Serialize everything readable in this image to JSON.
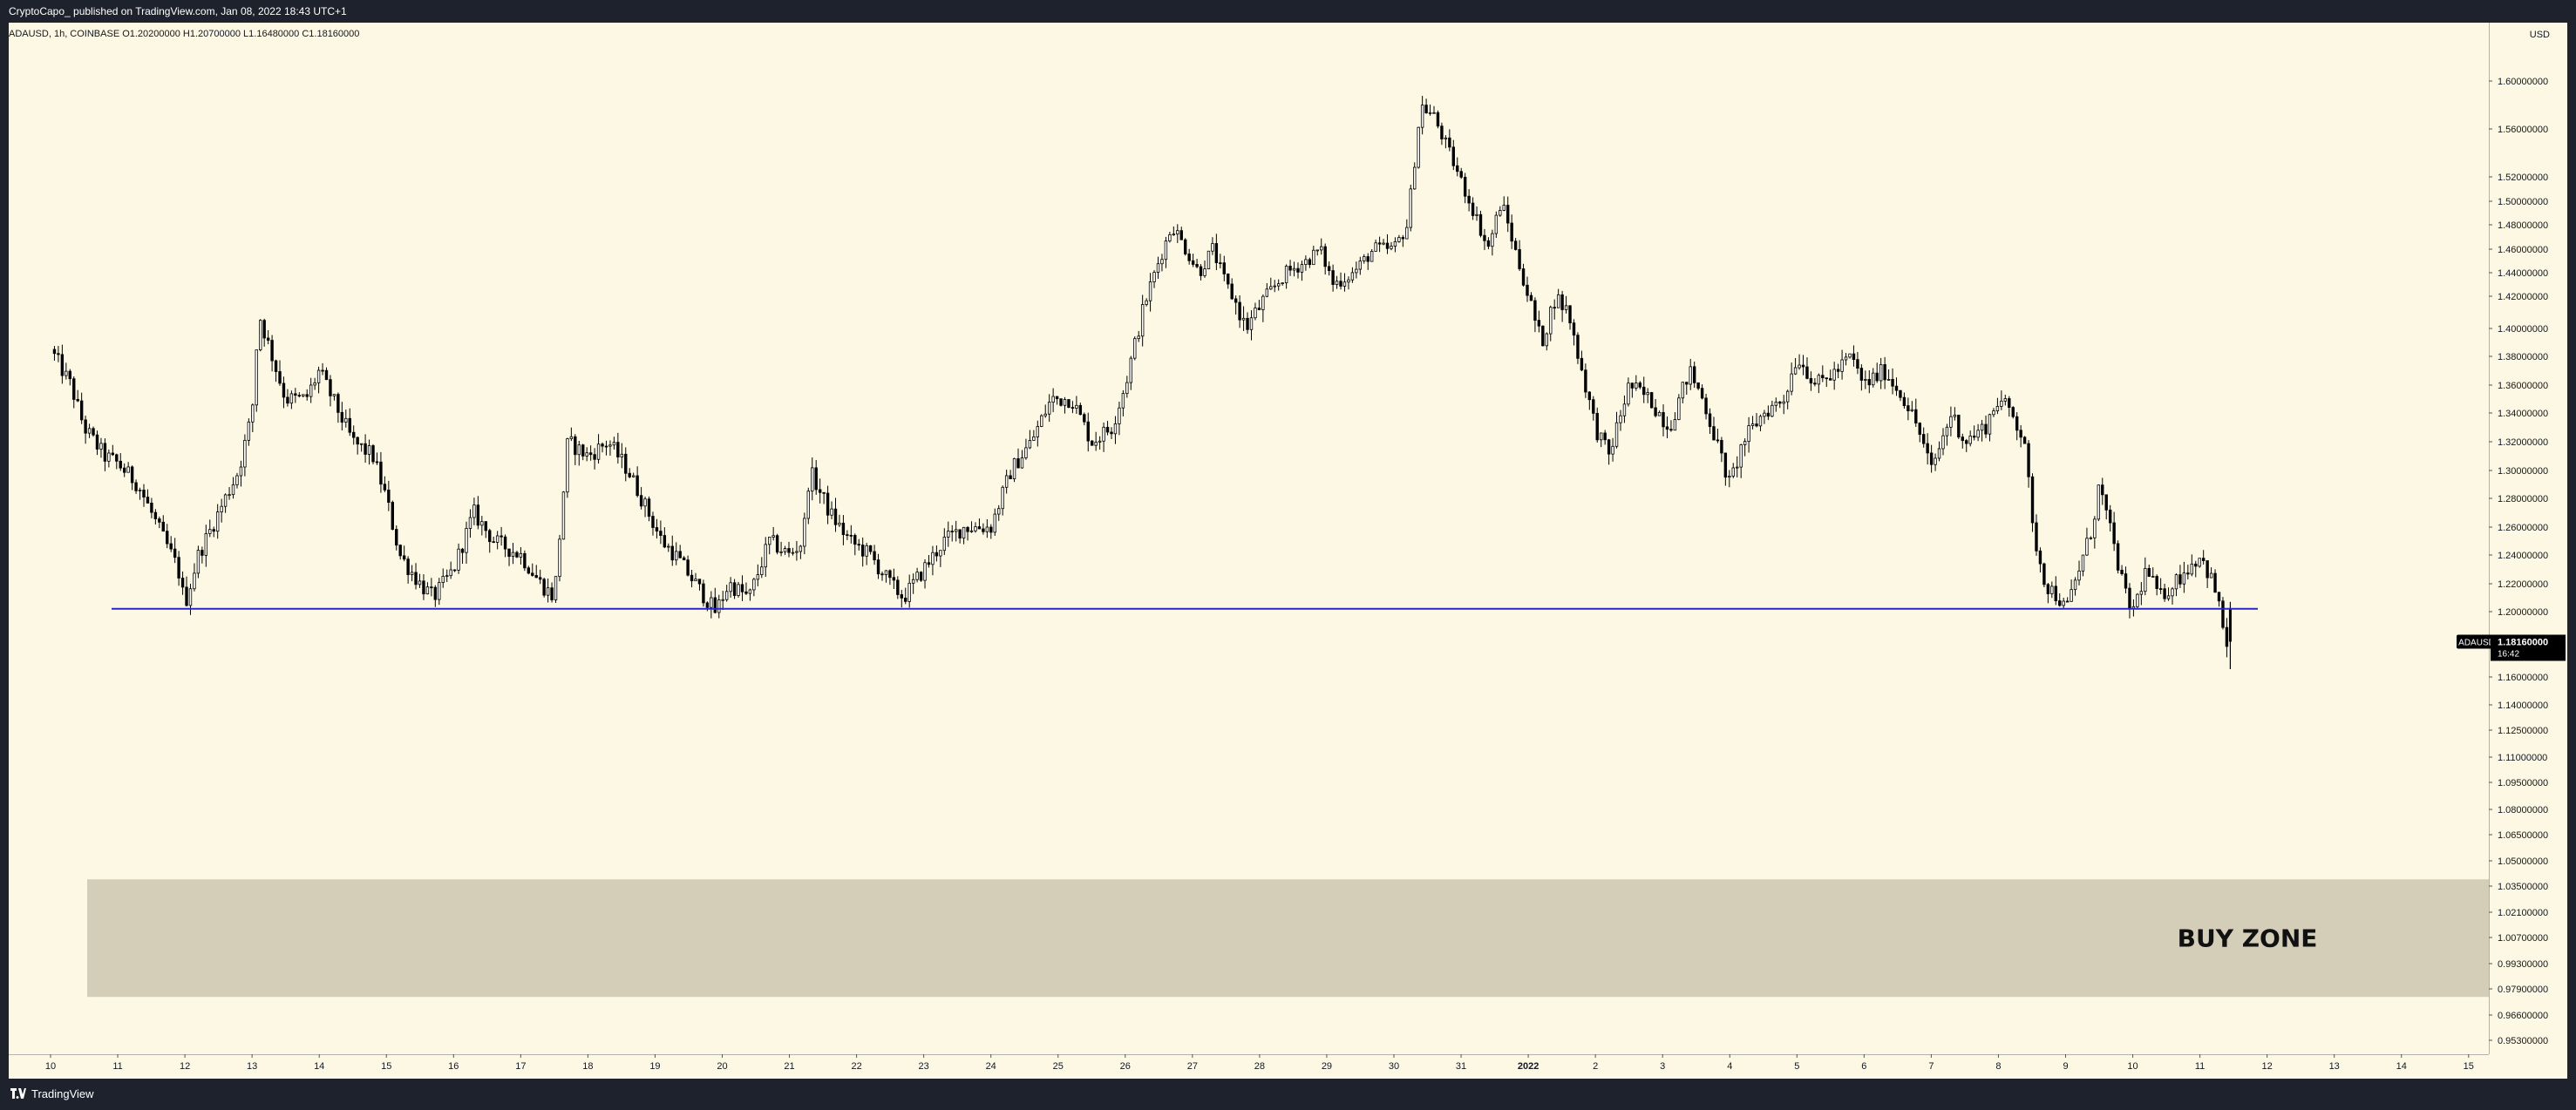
{
  "header": {
    "published_text": "CryptoCapo_ published on TradingView.com, Jan 08, 2022 18:43 UTC+1"
  },
  "footer": {
    "brand_label": "TradingView"
  },
  "chart_data": {
    "type": "candlestick",
    "symbol_line": "ADAUSD, 1h, COINBASE O1.20200000 H1.20700000 L1.16480000 C1.18160000",
    "currency_label": "USD",
    "price_tag": {
      "symbol": "ADAUSD",
      "price": "1.18160000",
      "countdown": "16:42",
      "value": 1.1816
    },
    "support_line": {
      "price": 1.202
    },
    "zone": {
      "label": "BUY ZONE",
      "from": 0.975,
      "to": 1.039
    },
    "x_ticks": [
      "10",
      "11",
      "12",
      "13",
      "14",
      "15",
      "16",
      "17",
      "18",
      "19",
      "20",
      "21",
      "22",
      "23",
      "24",
      "25",
      "26",
      "27",
      "28",
      "29",
      "30",
      "31",
      "2022",
      "2",
      "3",
      "4",
      "5",
      "6",
      "7",
      "8",
      "9",
      "10",
      "11",
      "12",
      "13",
      "14",
      "15"
    ],
    "y_ticks": [
      "1.60000000",
      "1.56000000",
      "1.52000000",
      "1.50000000",
      "1.48000000",
      "1.46000000",
      "1.44000000",
      "1.42000000",
      "1.40000000",
      "1.38000000",
      "1.36000000",
      "1.34000000",
      "1.32000000",
      "1.30000000",
      "1.28000000",
      "1.26000000",
      "1.24000000",
      "1.22000000",
      "1.20000000",
      "1.16000000",
      "1.14000000",
      "1.12500000",
      "1.11000000",
      "1.09500000",
      "1.08000000",
      "1.06500000",
      "1.05000000",
      "1.03500000",
      "1.02100000",
      "1.00700000",
      "0.99300000",
      "0.97900000",
      "0.96600000",
      "0.95300000"
    ],
    "price_path": [
      [
        0.0,
        1.385
      ],
      [
        0.3,
        1.36
      ],
      [
        0.5,
        1.33
      ],
      [
        0.8,
        1.31
      ],
      [
        1.0,
        1.305
      ],
      [
        1.3,
        1.29
      ],
      [
        1.5,
        1.27
      ],
      [
        1.7,
        1.25
      ],
      [
        1.9,
        1.23
      ],
      [
        2.0,
        1.205
      ],
      [
        2.2,
        1.24
      ],
      [
        2.5,
        1.27
      ],
      [
        2.8,
        1.3
      ],
      [
        3.0,
        1.34
      ],
      [
        3.1,
        1.41
      ],
      [
        3.3,
        1.38
      ],
      [
        3.5,
        1.35
      ],
      [
        3.8,
        1.35
      ],
      [
        4.0,
        1.37
      ],
      [
        4.2,
        1.35
      ],
      [
        4.5,
        1.32
      ],
      [
        4.8,
        1.31
      ],
      [
        5.0,
        1.28
      ],
      [
        5.2,
        1.24
      ],
      [
        5.5,
        1.22
      ],
      [
        5.7,
        1.21
      ],
      [
        6.0,
        1.23
      ],
      [
        6.3,
        1.27
      ],
      [
        6.6,
        1.25
      ],
      [
        7.0,
        1.24
      ],
      [
        7.3,
        1.22
      ],
      [
        7.5,
        1.21
      ],
      [
        7.7,
        1.32
      ],
      [
        8.0,
        1.31
      ],
      [
        8.3,
        1.32
      ],
      [
        8.6,
        1.3
      ],
      [
        8.9,
        1.27
      ],
      [
        9.1,
        1.25
      ],
      [
        9.3,
        1.24
      ],
      [
        9.6,
        1.22
      ],
      [
        9.9,
        1.2
      ],
      [
        10.1,
        1.22
      ],
      [
        10.4,
        1.21
      ],
      [
        10.7,
        1.25
      ],
      [
        11.0,
        1.24
      ],
      [
        11.2,
        1.25
      ],
      [
        11.3,
        1.3
      ],
      [
        11.6,
        1.27
      ],
      [
        11.9,
        1.25
      ],
      [
        12.2,
        1.24
      ],
      [
        12.5,
        1.22
      ],
      [
        12.7,
        1.21
      ],
      [
        13.0,
        1.23
      ],
      [
        13.3,
        1.25
      ],
      [
        13.6,
        1.26
      ],
      [
        14.0,
        1.26
      ],
      [
        14.3,
        1.3
      ],
      [
        14.6,
        1.32
      ],
      [
        14.9,
        1.35
      ],
      [
        15.2,
        1.35
      ],
      [
        15.5,
        1.32
      ],
      [
        15.8,
        1.33
      ],
      [
        16.0,
        1.36
      ],
      [
        16.2,
        1.4
      ],
      [
        16.5,
        1.45
      ],
      [
        16.7,
        1.48
      ],
      [
        16.9,
        1.46
      ],
      [
        17.1,
        1.44
      ],
      [
        17.3,
        1.46
      ],
      [
        17.5,
        1.43
      ],
      [
        17.8,
        1.4
      ],
      [
        18.1,
        1.42
      ],
      [
        18.4,
        1.44
      ],
      [
        18.7,
        1.45
      ],
      [
        18.9,
        1.46
      ],
      [
        19.1,
        1.43
      ],
      [
        19.4,
        1.44
      ],
      [
        19.7,
        1.46
      ],
      [
        20.0,
        1.46
      ],
      [
        20.2,
        1.48
      ],
      [
        20.4,
        1.58
      ],
      [
        20.6,
        1.57
      ],
      [
        20.9,
        1.53
      ],
      [
        21.2,
        1.49
      ],
      [
        21.4,
        1.46
      ],
      [
        21.6,
        1.5
      ],
      [
        21.8,
        1.46
      ],
      [
        22.0,
        1.42
      ],
      [
        22.2,
        1.39
      ],
      [
        22.4,
        1.42
      ],
      [
        22.6,
        1.41
      ],
      [
        22.8,
        1.37
      ],
      [
        23.0,
        1.33
      ],
      [
        23.2,
        1.31
      ],
      [
        23.5,
        1.36
      ],
      [
        23.8,
        1.35
      ],
      [
        24.1,
        1.33
      ],
      [
        24.4,
        1.37
      ],
      [
        24.6,
        1.35
      ],
      [
        24.8,
        1.32
      ],
      [
        25.0,
        1.29
      ],
      [
        25.2,
        1.32
      ],
      [
        25.5,
        1.34
      ],
      [
        25.8,
        1.35
      ],
      [
        26.0,
        1.38
      ],
      [
        26.3,
        1.36
      ],
      [
        26.6,
        1.37
      ],
      [
        26.8,
        1.38
      ],
      [
        27.0,
        1.36
      ],
      [
        27.3,
        1.37
      ],
      [
        27.6,
        1.35
      ],
      [
        27.8,
        1.33
      ],
      [
        28.0,
        1.3
      ],
      [
        28.3,
        1.34
      ],
      [
        28.5,
        1.32
      ],
      [
        28.8,
        1.33
      ],
      [
        29.0,
        1.35
      ],
      [
        29.2,
        1.34
      ],
      [
        29.4,
        1.32
      ],
      [
        29.5,
        1.26
      ],
      [
        29.7,
        1.22
      ],
      [
        29.9,
        1.21
      ],
      [
        30.0,
        1.2
      ],
      [
        30.2,
        1.23
      ],
      [
        30.4,
        1.26
      ],
      [
        30.5,
        1.29
      ],
      [
        30.7,
        1.25
      ],
      [
        30.9,
        1.21
      ],
      [
        31.0,
        1.2
      ],
      [
        31.2,
        1.23
      ],
      [
        31.4,
        1.21
      ],
      [
        31.6,
        1.22
      ],
      [
        31.8,
        1.23
      ],
      [
        32.0,
        1.24
      ],
      [
        32.2,
        1.22
      ],
      [
        32.4,
        1.18
      ]
    ]
  }
}
